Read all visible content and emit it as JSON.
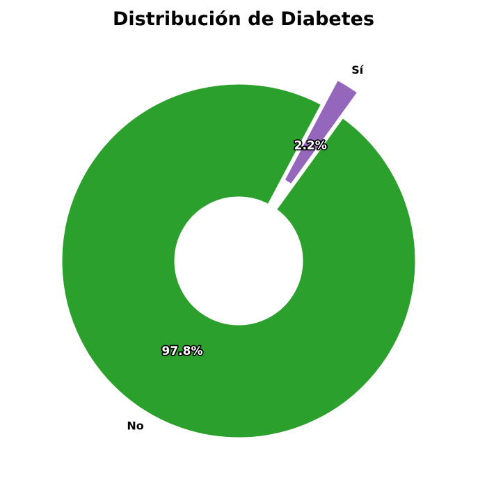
{
  "chart_data": {
    "type": "pie",
    "variant": "donut",
    "title": "Distribución de Diabetes",
    "categories": [
      "No",
      "Sí"
    ],
    "values": [
      97.8,
      2.2
    ],
    "percent_labels": [
      "97.8%",
      "2.2%"
    ],
    "colors": [
      "#2ca02c",
      "#9467bd"
    ],
    "exploded": [
      "Sí"
    ],
    "legend": "none"
  }
}
